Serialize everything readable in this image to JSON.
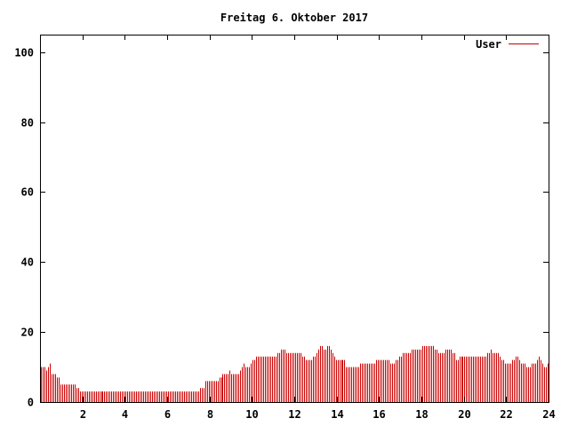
{
  "chart_data": {
    "type": "bar",
    "title": "Freitag 6. Oktober 2017",
    "xlabel": "",
    "ylabel": "",
    "xlim": [
      0,
      24
    ],
    "ylim": [
      0,
      105
    ],
    "x_ticks": [
      "2",
      "4",
      "6",
      "8",
      "10",
      "12",
      "14",
      "16",
      "18",
      "20",
      "22",
      "24"
    ],
    "y_ticks": [
      "0",
      "20",
      "40",
      "60",
      "80",
      "100"
    ],
    "legend_position": "top-right",
    "grid": false,
    "series": [
      {
        "name": "User",
        "color": "#cc0000",
        "x_step_hours": 0.0833,
        "values": [
          10,
          10,
          10,
          9,
          10,
          11,
          8,
          8,
          8,
          7,
          7,
          5,
          5,
          5,
          5,
          5,
          5,
          5,
          5,
          5,
          4,
          4,
          3,
          3,
          3,
          3,
          3,
          3,
          3,
          3,
          3,
          3,
          3,
          3,
          3,
          3,
          3,
          3,
          3,
          3,
          3,
          3,
          3,
          3,
          3,
          3,
          3,
          3,
          3,
          3,
          3,
          3,
          3,
          3,
          3,
          3,
          3,
          3,
          3,
          3,
          3,
          3,
          3,
          3,
          3,
          3,
          3,
          3,
          3,
          3,
          3,
          3,
          3,
          3,
          3,
          3,
          3,
          3,
          3,
          3,
          3,
          3,
          3,
          3,
          3,
          3,
          3,
          3,
          3,
          3,
          4,
          4,
          4,
          6,
          6,
          6,
          6,
          6,
          6,
          6,
          6,
          7,
          7,
          8,
          8,
          8,
          8,
          9,
          8,
          8,
          8,
          8,
          8,
          9,
          10,
          11,
          10,
          10,
          10,
          11,
          12,
          12,
          13,
          13,
          13,
          13,
          13,
          13,
          13,
          13,
          13,
          13,
          13,
          13,
          14,
          14,
          15,
          15,
          15,
          14,
          14,
          14,
          14,
          14,
          14,
          14,
          14,
          14,
          13,
          13,
          12,
          12,
          12,
          12,
          13,
          13,
          14,
          15,
          16,
          16,
          15,
          15,
          16,
          16,
          15,
          14,
          13,
          12,
          12,
          12,
          12,
          12,
          12,
          10,
          10,
          10,
          10,
          10,
          10,
          10,
          10,
          11,
          11,
          11,
          11,
          11,
          11,
          11,
          11,
          11,
          12,
          12,
          12,
          12,
          12,
          12,
          12,
          12,
          11,
          11,
          11,
          12,
          12,
          13,
          13,
          14,
          14,
          14,
          14,
          14,
          15,
          15,
          15,
          15,
          15,
          15,
          16,
          16,
          16,
          16,
          16,
          16,
          16,
          15,
          15,
          14,
          14,
          14,
          14,
          15,
          15,
          15,
          15,
          14,
          14,
          12,
          12,
          13,
          13,
          13,
          13,
          13,
          13,
          13,
          13,
          13,
          13,
          13,
          13,
          13,
          13,
          13,
          13,
          14,
          14,
          15,
          14,
          14,
          14,
          14,
          13,
          12,
          12,
          11,
          11,
          11,
          11,
          12,
          12,
          13,
          13,
          12,
          11,
          11,
          11,
          10,
          10,
          10,
          11,
          11,
          11,
          12,
          13,
          12,
          11,
          10,
          10,
          11
        ]
      }
    ]
  }
}
